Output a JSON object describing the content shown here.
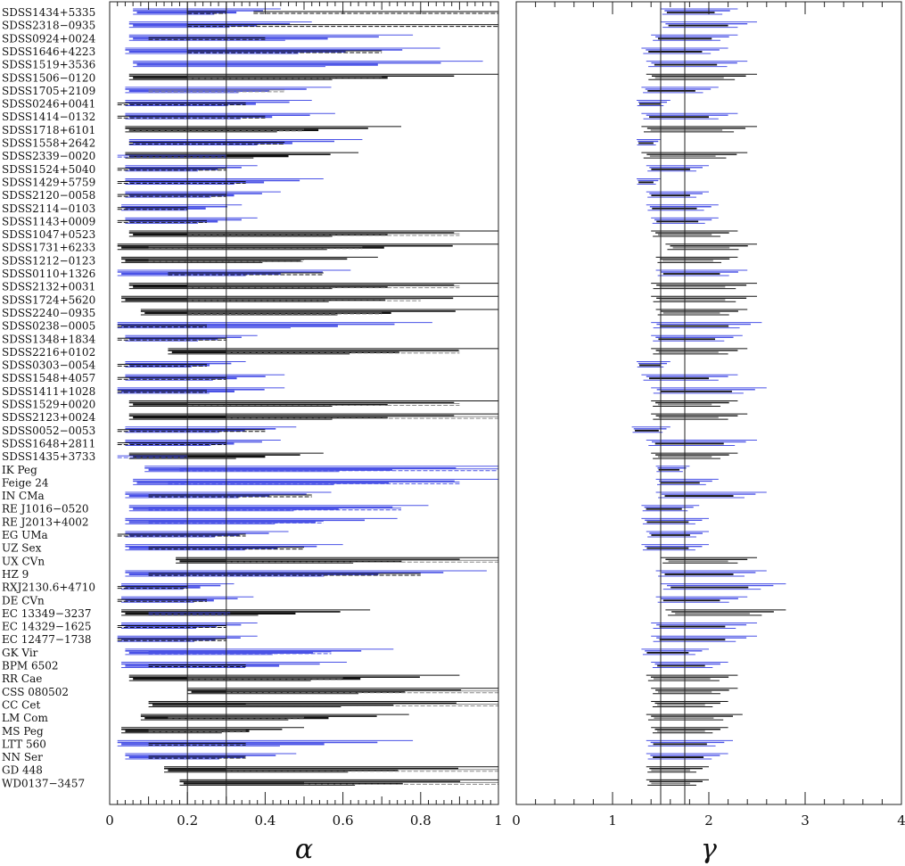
{
  "chart_data": [
    {
      "type": "horizontal-range",
      "panel": "alpha",
      "xlabel": "α",
      "xlim": [
        0,
        1
      ],
      "xticks": [
        "0",
        "0.2",
        "0.4",
        "0.6",
        "0.8",
        "1"
      ],
      "reference_lines": [
        0.2,
        0.3
      ],
      "grid": false,
      "categories": [
        "SDSS1434+5335",
        "SDSS2318−0935",
        "SDSS0924+0024",
        "SDSS1646+4223",
        "SDSS1519+3536",
        "SDSS1506−0120",
        "SDSS1705+2109",
        "SDSS0246+0041",
        "SDSS1414−0132",
        "SDSS1718+6101",
        "SDSS1558+2642",
        "SDSS2339−0020",
        "SDSS1524+5040",
        "SDSS1429+5759",
        "SDSS2120−0058",
        "SDSS2114−0103",
        "SDSS1143+0009",
        "SDSS1047+0523",
        "SDSS1731+6233",
        "SDSS1212−0123",
        "SDSS0110+1326",
        "SDSS2132+0031",
        "SDSS1724+5620",
        "SDSS2240−0935",
        "SDSS0238−0005",
        "SDSS1348+1834",
        "SDSS2216+0102",
        "SDSS0303−0054",
        "SDSS1548+4057",
        "SDSS1411+1028",
        "SDSS1529+0020",
        "SDSS2123+0024",
        "SDSS0052−0053",
        "SDSS1648+2811",
        "SDSS1435+3733",
        "IK Peg",
        "Feige 24",
        "IN CMa",
        "RE J1016−0520",
        "RE J2013+4002",
        "EG UMa",
        "UZ Sex",
        "UX CVn",
        "HZ 9",
        "RXJ2130.6+4710",
        "DE CVn",
        "EC 13349−3237",
        "EC 14329−1625",
        "EC 12477−1738",
        "GK Vir",
        "BPM 6502",
        "RR Cae",
        "CSS 080502",
        "CC Cet",
        "LM Com",
        "MS Peg",
        "LTT 560",
        "NN Ser",
        "GD 448",
        "WD0137−3457"
      ],
      "series_colors": {
        "blue": "#4a52e6",
        "black": "#111111",
        "grey": "#8a8a8a"
      },
      "ranges": [
        {
          "color": "blue",
          "main": [
            0.06,
            0.44
          ],
          "extra": [
            [
              0.37,
              1.0,
              "black"
            ],
            [
              0.2,
              0.3,
              "black"
            ]
          ]
        },
        {
          "color": "blue",
          "main": [
            0.05,
            0.52
          ],
          "extra": [
            [
              0.2,
              1.0,
              "black"
            ]
          ]
        },
        {
          "color": "blue",
          "main": [
            0.05,
            0.78
          ],
          "extra": [
            [
              0.1,
              0.4,
              "black"
            ]
          ]
        },
        {
          "color": "blue",
          "main": [
            0.04,
            0.85
          ],
          "extra": [
            [
              0.2,
              0.7,
              "black"
            ]
          ]
        },
        {
          "color": "blue",
          "main": [
            0.06,
            0.96
          ],
          "extra": []
        },
        {
          "color": "black",
          "main": [
            0.05,
            1.0
          ],
          "extra": [
            [
              0.2,
              0.7,
              "grey"
            ]
          ]
        },
        {
          "color": "blue",
          "main": [
            0.04,
            0.57
          ],
          "extra": [
            [
              0.1,
              0.45,
              "grey"
            ]
          ]
        },
        {
          "color": "blue",
          "main": [
            0.04,
            0.52
          ],
          "extra": [
            [
              0.02,
              0.35,
              "black"
            ]
          ]
        },
        {
          "color": "blue",
          "main": [
            0.04,
            0.58
          ],
          "extra": [
            [
              0.02,
              0.4,
              "black"
            ]
          ]
        },
        {
          "color": "black",
          "main": [
            0.04,
            0.75
          ],
          "extra": [
            [
              0.05,
              0.5,
              "grey"
            ]
          ]
        },
        {
          "color": "blue",
          "main": [
            0.05,
            0.65
          ],
          "extra": [
            [
              0.05,
              0.45,
              "black"
            ]
          ]
        },
        {
          "color": "black",
          "main": [
            0.04,
            0.64
          ],
          "extra": [
            [
              0.02,
              0.3,
              "blue"
            ]
          ]
        },
        {
          "color": "blue",
          "main": [
            0.04,
            0.38
          ],
          "extra": [
            [
              0.02,
              0.3,
              "black"
            ]
          ]
        },
        {
          "color": "blue",
          "main": [
            0.04,
            0.55
          ],
          "extra": [
            [
              0.02,
              0.35,
              "black"
            ]
          ]
        },
        {
          "color": "blue",
          "main": [
            0.04,
            0.44
          ],
          "extra": [
            [
              0.02,
              0.3,
              "black"
            ]
          ]
        },
        {
          "color": "blue",
          "main": [
            0.03,
            0.34
          ],
          "extra": [
            [
              0.02,
              0.2,
              "black"
            ]
          ]
        },
        {
          "color": "blue",
          "main": [
            0.04,
            0.38
          ],
          "extra": [
            [
              0.02,
              0.25,
              "black"
            ]
          ]
        },
        {
          "color": "black",
          "main": [
            0.05,
            1.0
          ],
          "extra": [
            [
              0.2,
              0.9,
              "grey"
            ]
          ]
        },
        {
          "color": "black",
          "main": [
            0.02,
            1.0
          ],
          "extra": [
            [
              0.1,
              0.65,
              "grey"
            ]
          ]
        },
        {
          "color": "black",
          "main": [
            0.03,
            0.69
          ],
          "extra": [
            [
              0.1,
              0.5,
              "grey"
            ]
          ]
        },
        {
          "color": "blue",
          "main": [
            0.02,
            0.62
          ],
          "extra": [
            [
              0.15,
              0.55,
              "black"
            ]
          ]
        },
        {
          "color": "black",
          "main": [
            0.05,
            1.0
          ],
          "extra": [
            [
              0.2,
              0.9,
              "grey"
            ]
          ]
        },
        {
          "color": "black",
          "main": [
            0.03,
            1.0
          ],
          "extra": [
            [
              0.2,
              0.8,
              "grey"
            ]
          ]
        },
        {
          "color": "black",
          "main": [
            0.08,
            1.0
          ],
          "extra": [
            [
              0.2,
              0.7,
              "grey"
            ]
          ]
        },
        {
          "color": "blue",
          "main": [
            0.02,
            0.83
          ],
          "extra": [
            [
              0.02,
              0.25,
              "black"
            ]
          ]
        },
        {
          "color": "blue",
          "main": [
            0.04,
            0.38
          ],
          "extra": [
            [
              0.02,
              0.3,
              "black"
            ]
          ]
        },
        {
          "color": "black",
          "main": [
            0.15,
            1.0
          ],
          "extra": [
            [
              0.3,
              0.9,
              "grey"
            ]
          ]
        },
        {
          "color": "blue",
          "main": [
            0.04,
            0.35
          ],
          "extra": [
            [
              0.02,
              0.25,
              "black"
            ]
          ]
        },
        {
          "color": "blue",
          "main": [
            0.04,
            0.45
          ],
          "extra": [
            [
              0.02,
              0.3,
              "black"
            ]
          ]
        },
        {
          "color": "blue",
          "main": [
            0.02,
            0.45
          ],
          "extra": [
            [
              0.02,
              0.25,
              "black"
            ]
          ]
        },
        {
          "color": "black",
          "main": [
            0.05,
            1.0
          ],
          "extra": [
            [
              0.2,
              0.9,
              "grey"
            ]
          ]
        },
        {
          "color": "black",
          "main": [
            0.05,
            1.0
          ],
          "extra": [
            [
              0.3,
              1.0,
              "grey"
            ]
          ]
        },
        {
          "color": "blue",
          "main": [
            0.04,
            0.48
          ],
          "extra": [
            [
              0.02,
              0.4,
              "black"
            ]
          ]
        },
        {
          "color": "blue",
          "main": [
            0.04,
            0.44
          ],
          "extra": [
            [
              0.02,
              0.3,
              "black"
            ]
          ]
        },
        {
          "color": "black",
          "main": [
            0.05,
            0.55
          ],
          "extra": [
            [
              0.02,
              0.2,
              "blue"
            ]
          ]
        },
        {
          "color": "blue",
          "main": [
            0.09,
            1.0
          ],
          "extra": [
            [
              0.18,
              1.0,
              "blue"
            ]
          ]
        },
        {
          "color": "blue",
          "main": [
            0.06,
            1.0
          ],
          "extra": [
            [
              0.15,
              0.9,
              "blue"
            ]
          ]
        },
        {
          "color": "blue",
          "main": [
            0.04,
            0.57
          ],
          "extra": [
            [
              0.1,
              0.52,
              "black"
            ]
          ]
        },
        {
          "color": "blue",
          "main": [
            0.05,
            0.82
          ],
          "extra": [
            [
              0.1,
              0.75,
              "blue"
            ]
          ]
        },
        {
          "color": "blue",
          "main": [
            0.04,
            0.74
          ],
          "extra": [
            [
              0.1,
              0.55,
              "blue"
            ]
          ]
        },
        {
          "color": "blue",
          "main": [
            0.04,
            0.46
          ],
          "extra": [
            [
              0.02,
              0.35,
              "black"
            ]
          ]
        },
        {
          "color": "blue",
          "main": [
            0.04,
            0.6
          ],
          "extra": [
            [
              0.1,
              0.5,
              "black"
            ]
          ]
        },
        {
          "color": "black",
          "main": [
            0.17,
            1.0
          ],
          "extra": [
            [
              0.3,
              1.0,
              "grey"
            ]
          ]
        },
        {
          "color": "blue",
          "main": [
            0.04,
            0.97
          ],
          "extra": [
            [
              0.1,
              0.8,
              "black"
            ]
          ]
        },
        {
          "color": "blue",
          "main": [
            0.03,
            0.32
          ],
          "extra": [
            [
              0.02,
              0.2,
              "black"
            ]
          ]
        },
        {
          "color": "blue",
          "main": [
            0.03,
            0.37
          ],
          "extra": [
            [
              0.02,
              0.25,
              "black"
            ]
          ]
        },
        {
          "color": "black",
          "main": [
            0.03,
            0.67
          ],
          "extra": [
            [
              0.1,
              0.31,
              "blue"
            ]
          ]
        },
        {
          "color": "blue",
          "main": [
            0.03,
            0.38
          ],
          "extra": [
            [
              0.02,
              0.3,
              "black"
            ]
          ]
        },
        {
          "color": "blue",
          "main": [
            0.02,
            0.38
          ],
          "extra": [
            [
              0.02,
              0.3,
              "black"
            ]
          ]
        },
        {
          "color": "blue",
          "main": [
            0.04,
            0.73
          ],
          "extra": [
            [
              0.1,
              0.57,
              "blue"
            ]
          ]
        },
        {
          "color": "blue",
          "main": [
            0.03,
            0.61
          ],
          "extra": [
            [
              0.1,
              0.35,
              "black"
            ]
          ]
        },
        {
          "color": "black",
          "main": [
            0.05,
            0.9
          ],
          "extra": [
            [
              0.2,
              0.6,
              "grey"
            ]
          ]
        },
        {
          "color": "black",
          "main": [
            0.2,
            1.0
          ],
          "extra": [
            [
              0.3,
              1.0,
              "grey"
            ]
          ]
        },
        {
          "color": "black",
          "main": [
            0.1,
            1.0
          ],
          "extra": [
            [
              0.35,
              1.0,
              "grey"
            ]
          ]
        },
        {
          "color": "black",
          "main": [
            0.08,
            0.77
          ],
          "extra": [
            [
              0.15,
              0.5,
              "grey"
            ]
          ]
        },
        {
          "color": "black",
          "main": [
            0.03,
            0.5
          ],
          "extra": [
            [
              0.1,
              0.35,
              "grey"
            ]
          ]
        },
        {
          "color": "blue",
          "main": [
            0.02,
            0.78
          ],
          "extra": [
            [
              0.1,
              0.35,
              "black"
            ]
          ]
        },
        {
          "color": "blue",
          "main": [
            0.04,
            0.48
          ],
          "extra": [
            [
              0.1,
              0.35,
              "black"
            ]
          ]
        },
        {
          "color": "black",
          "main": [
            0.14,
            1.0
          ],
          "extra": [
            [
              0.3,
              1.0,
              "grey"
            ]
          ]
        },
        {
          "color": "black",
          "main": [
            0.18,
            1.0
          ],
          "extra": [
            [
              0.5,
              1.0,
              "grey"
            ]
          ]
        }
      ]
    },
    {
      "type": "horizontal-range",
      "panel": "gamma",
      "xlabel": "γ",
      "xlim": [
        0,
        4
      ],
      "xticks": [
        "0",
        "1",
        "2",
        "3",
        "4"
      ],
      "reference_lines": [
        1.5,
        1.75
      ],
      "grid": false,
      "ranges": [
        [
          1.5,
          2.3
        ],
        [
          1.5,
          2.5
        ],
        [
          1.4,
          2.3
        ],
        [
          1.3,
          2.2
        ],
        [
          1.35,
          2.4
        ],
        [
          1.35,
          2.5
        ],
        [
          1.3,
          2.1
        ],
        [
          1.25,
          1.6
        ],
        [
          1.3,
          2.3
        ],
        [
          1.3,
          2.5
        ],
        [
          1.25,
          1.5
        ],
        [
          1.3,
          2.4
        ],
        [
          1.35,
          2.0
        ],
        [
          1.25,
          1.5
        ],
        [
          1.35,
          2.0
        ],
        [
          1.35,
          2.1
        ],
        [
          1.4,
          2.1
        ],
        [
          1.4,
          2.3
        ],
        [
          1.55,
          2.5
        ],
        [
          1.45,
          2.3
        ],
        [
          1.45,
          2.4
        ],
        [
          1.4,
          2.5
        ],
        [
          1.4,
          2.5
        ],
        [
          1.45,
          2.4
        ],
        [
          1.4,
          2.55
        ],
        [
          1.4,
          2.35
        ],
        [
          1.4,
          2.4
        ],
        [
          1.25,
          1.6
        ],
        [
          1.3,
          2.3
        ],
        [
          1.4,
          2.6
        ],
        [
          1.4,
          2.3
        ],
        [
          1.4,
          2.4
        ],
        [
          1.2,
          1.6
        ],
        [
          1.35,
          2.5
        ],
        [
          1.4,
          2.3
        ],
        [
          1.45,
          1.8
        ],
        [
          1.45,
          2.1
        ],
        [
          1.45,
          2.6
        ],
        [
          1.3,
          1.9
        ],
        [
          1.3,
          2.0
        ],
        [
          1.35,
          2.0
        ],
        [
          1.3,
          2.0
        ],
        [
          1.5,
          2.5
        ],
        [
          1.45,
          2.6
        ],
        [
          1.5,
          2.8
        ],
        [
          1.45,
          2.4
        ],
        [
          1.55,
          2.8
        ],
        [
          1.4,
          2.5
        ],
        [
          1.4,
          2.5
        ],
        [
          1.3,
          2.0
        ],
        [
          1.4,
          2.2
        ],
        [
          1.35,
          2.3
        ],
        [
          1.4,
          2.3
        ],
        [
          1.4,
          2.2
        ],
        [
          1.35,
          2.35
        ],
        [
          1.4,
          2.2
        ],
        [
          1.35,
          2.25
        ],
        [
          1.35,
          2.2
        ],
        [
          1.35,
          2.0
        ],
        [
          1.35,
          2.0
        ]
      ]
    }
  ]
}
